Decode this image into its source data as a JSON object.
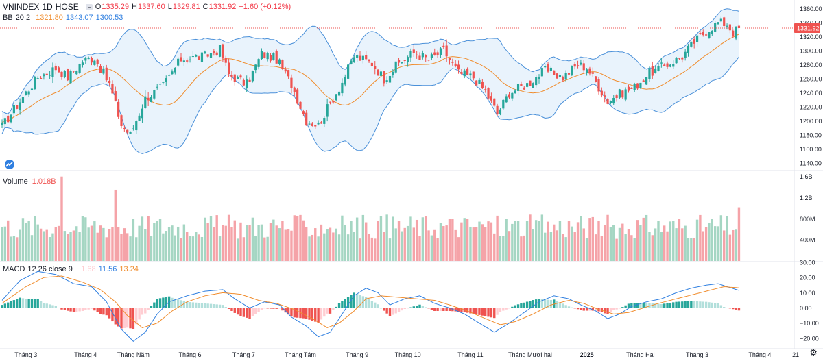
{
  "header": {
    "symbol": "VNINDEX",
    "interval": "1D",
    "exchange": "HOSE",
    "o_label": "O",
    "o": "1335.29",
    "h_label": "H",
    "h": "1337.60",
    "l_label": "L",
    "l": "1329.81",
    "c_label": "C",
    "c": "1331.92",
    "change": "+1.60 (+0.12%)"
  },
  "bb_legend": {
    "name": "BB",
    "params": "20 2",
    "basis": "1321.80",
    "upper": "1343.07",
    "lower": "1300.53"
  },
  "volume_legend": {
    "name": "Volume",
    "value": "1.018B"
  },
  "macd_legend": {
    "name": "MACD",
    "params": "12 26 close 9",
    "hist": "−1.68",
    "macd": "11.56",
    "signal": "13.24"
  },
  "last_price_tag": "1331.92",
  "colors": {
    "up": "#26a69a",
    "down": "#ef5350",
    "vol_up": "#a5d6c3",
    "vol_down": "#f5a3a8",
    "bb_band": "#4a90d9",
    "bb_fill": "#e3f0fb",
    "bb_basis": "#f08c2c",
    "macd": "#2f7fe0",
    "signal": "#f08c2c",
    "hist_up_strong": "#26a69a",
    "hist_up_weak": "#b2dfdb",
    "hist_dn_strong": "#ef5350",
    "hist_dn_weak": "#ffcdd2"
  },
  "chart_data": [
    {
      "type": "candlestick",
      "title": "VNINDEX 1D HOSE",
      "y_ticks": [
        1360.0,
        1340.0,
        1320.0,
        1300.0,
        1280.0,
        1260.0,
        1240.0,
        1220.0,
        1200.0,
        1180.0,
        1160.0,
        1140.0
      ],
      "y_tick_labels": [
        "1360.00",
        "1340.00",
        "1320.00",
        "1300.00",
        "1280.00",
        "1260.00",
        "1240.00",
        "1220.00",
        "1200.00",
        "1180.00",
        "1160.00",
        "1140.00"
      ],
      "ylim": [
        1130,
        1370
      ],
      "x_ticks": [
        {
          "label": "Tháng 3",
          "bar": 8
        },
        {
          "label": "Tháng 4",
          "bar": 28
        },
        {
          "label": "Tháng Năm",
          "bar": 44
        },
        {
          "label": "Tháng 6",
          "bar": 63
        },
        {
          "label": "Tháng 7",
          "bar": 81
        },
        {
          "label": "Tháng Tám",
          "bar": 100
        },
        {
          "label": "Tháng 9",
          "bar": 119
        },
        {
          "label": "Tháng 10",
          "bar": 136
        },
        {
          "label": "Tháng 11",
          "bar": 157
        },
        {
          "label": "Tháng Mười hai",
          "bar": 177
        },
        {
          "label": "2025",
          "bar": 196
        },
        {
          "label": "Tháng Hai",
          "bar": 214
        },
        {
          "label": "Tháng 3",
          "bar": 233
        },
        {
          "label": "Tháng 4",
          "bar": 254
        },
        {
          "label": "21",
          "bar": 266
        }
      ],
      "close_path": [
        [
          0,
          1192
        ],
        [
          8,
          1240
        ],
        [
          12,
          1262
        ],
        [
          18,
          1275
        ],
        [
          22,
          1262
        ],
        [
          27,
          1285
        ],
        [
          31,
          1290
        ],
        [
          36,
          1252
        ],
        [
          40,
          1194
        ],
        [
          43,
          1180
        ],
        [
          48,
          1232
        ],
        [
          54,
          1250
        ],
        [
          60,
          1288
        ],
        [
          68,
          1292
        ],
        [
          73,
          1302
        ],
        [
          76,
          1266
        ],
        [
          82,
          1252
        ],
        [
          87,
          1295
        ],
        [
          92,
          1288
        ],
        [
          97,
          1252
        ],
        [
          102,
          1200
        ],
        [
          106,
          1194
        ],
        [
          110,
          1225
        ],
        [
          114,
          1255
        ],
        [
          118,
          1292
        ],
        [
          124,
          1282
        ],
        [
          128,
          1260
        ],
        [
          133,
          1282
        ],
        [
          138,
          1297
        ],
        [
          143,
          1287
        ],
        [
          148,
          1300
        ],
        [
          153,
          1268
        ],
        [
          158,
          1262
        ],
        [
          162,
          1242
        ],
        [
          166,
          1210
        ],
        [
          170,
          1240
        ],
        [
          176,
          1252
        ],
        [
          182,
          1272
        ],
        [
          188,
          1262
        ],
        [
          193,
          1280
        ],
        [
          196,
          1276
        ],
        [
          199,
          1255
        ],
        [
          203,
          1228
        ],
        [
          207,
          1238
        ],
        [
          212,
          1248
        ],
        [
          217,
          1268
        ],
        [
          222,
          1278
        ],
        [
          228,
          1292
        ],
        [
          232,
          1312
        ],
        [
          236,
          1328
        ],
        [
          240,
          1340
        ],
        [
          243,
          1338
        ],
        [
          245,
          1326
        ],
        [
          247,
          1331.92
        ]
      ]
    },
    {
      "type": "bar",
      "title": "Volume",
      "y_ticks": [
        400000000,
        800000000,
        1200000000,
        1600000000
      ],
      "y_tick_labels": [
        "400M",
        "800M",
        "1.2B",
        "1.6B"
      ],
      "ylim": [
        0,
        1700000000
      ],
      "last_value": 1018000000
    },
    {
      "type": "line",
      "title": "MACD 12 26 close 9",
      "y_ticks": [
        30,
        20,
        10,
        0,
        -10,
        -20
      ],
      "y_tick_labels": [
        "30.00",
        "20.00",
        "10.00",
        "0.00",
        "−10.00",
        "−20.00"
      ],
      "ylim": [
        -25,
        30
      ],
      "macd_path": [
        [
          0,
          5
        ],
        [
          6,
          18
        ],
        [
          12,
          24
        ],
        [
          18,
          22
        ],
        [
          24,
          16
        ],
        [
          30,
          14
        ],
        [
          35,
          4
        ],
        [
          40,
          -14
        ],
        [
          44,
          -22
        ],
        [
          48,
          -16
        ],
        [
          52,
          -4
        ],
        [
          56,
          4
        ],
        [
          62,
          8
        ],
        [
          68,
          11
        ],
        [
          74,
          12
        ],
        [
          78,
          6
        ],
        [
          83,
          0
        ],
        [
          88,
          4
        ],
        [
          93,
          2
        ],
        [
          97,
          -6
        ],
        [
          102,
          -12
        ],
        [
          106,
          -19
        ],
        [
          110,
          -16
        ],
        [
          114,
          -4
        ],
        [
          118,
          8
        ],
        [
          122,
          13
        ],
        [
          126,
          10
        ],
        [
          130,
          2
        ],
        [
          135,
          6
        ],
        [
          140,
          8
        ],
        [
          145,
          3
        ],
        [
          150,
          0
        ],
        [
          155,
          -4
        ],
        [
          160,
          -10
        ],
        [
          165,
          -16
        ],
        [
          170,
          -10
        ],
        [
          175,
          -3
        ],
        [
          180,
          4
        ],
        [
          185,
          8
        ],
        [
          190,
          6
        ],
        [
          194,
          2
        ],
        [
          199,
          -2
        ],
        [
          203,
          -7
        ],
        [
          207,
          -4
        ],
        [
          211,
          1
        ],
        [
          216,
          4
        ],
        [
          221,
          6
        ],
        [
          226,
          10
        ],
        [
          231,
          13
        ],
        [
          236,
          15
        ],
        [
          240,
          16
        ],
        [
          243,
          14
        ],
        [
          247,
          11.56
        ]
      ],
      "signal_path": [
        [
          0,
          3
        ],
        [
          8,
          14
        ],
        [
          14,
          20
        ],
        [
          20,
          21
        ],
        [
          27,
          17
        ],
        [
          33,
          12
        ],
        [
          38,
          4
        ],
        [
          42,
          -5
        ],
        [
          47,
          -13
        ],
        [
          52,
          -10
        ],
        [
          57,
          -2
        ],
        [
          62,
          4
        ],
        [
          68,
          8
        ],
        [
          74,
          10
        ],
        [
          80,
          9
        ],
        [
          86,
          5
        ],
        [
          92,
          3
        ],
        [
          98,
          -1
        ],
        [
          104,
          -7
        ],
        [
          109,
          -13
        ],
        [
          113,
          -10
        ],
        [
          118,
          -2
        ],
        [
          122,
          6
        ],
        [
          127,
          8
        ],
        [
          133,
          7
        ],
        [
          139,
          6
        ],
        [
          145,
          5
        ],
        [
          150,
          2
        ],
        [
          156,
          -2
        ],
        [
          162,
          -7
        ],
        [
          167,
          -11
        ],
        [
          172,
          -9
        ],
        [
          178,
          -4
        ],
        [
          184,
          2
        ],
        [
          190,
          5
        ],
        [
          195,
          3
        ],
        [
          200,
          -1
        ],
        [
          205,
          -4
        ],
        [
          210,
          -3
        ],
        [
          215,
          0
        ],
        [
          220,
          3
        ],
        [
          226,
          6
        ],
        [
          232,
          9
        ],
        [
          238,
          12
        ],
        [
          242,
          14
        ],
        [
          247,
          13.24
        ]
      ],
      "hist_last": -1.68
    }
  ]
}
